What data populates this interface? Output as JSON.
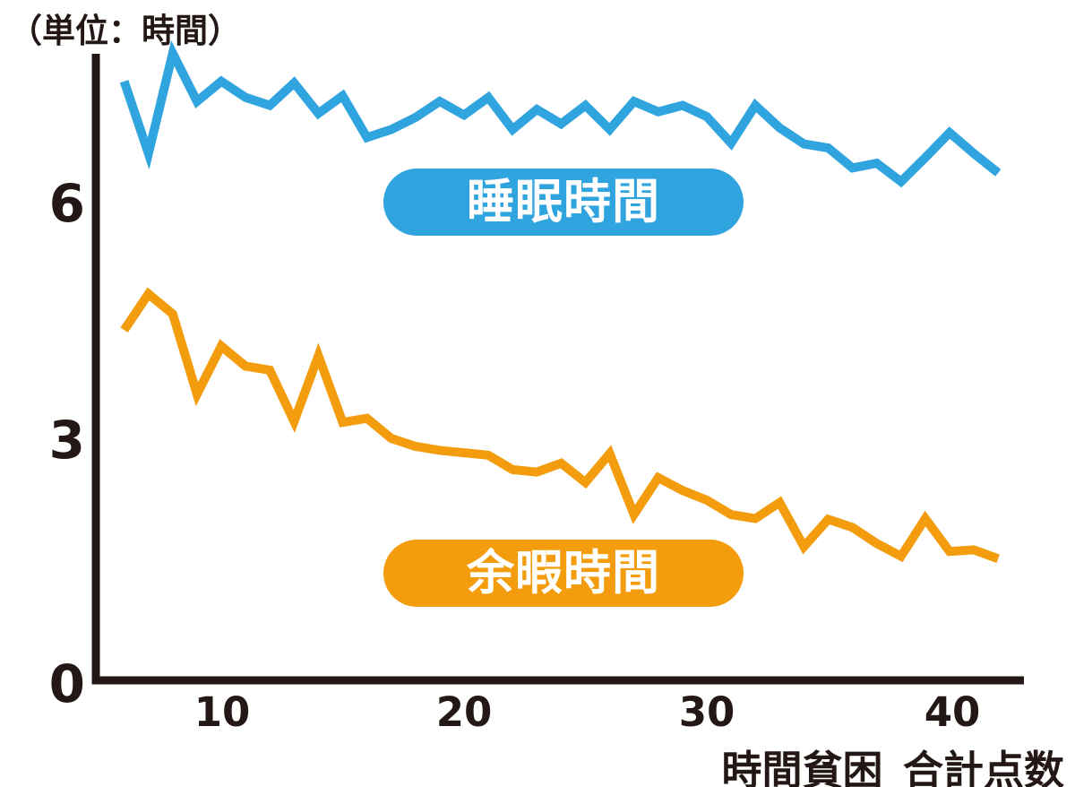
{
  "unit_label": "（単位：時間）",
  "y_axis": {
    "ticks": [
      "0",
      "3",
      "6"
    ]
  },
  "x_axis": {
    "ticks": [
      "10",
      "20",
      "30",
      "40"
    ],
    "title": "時間貧困_合計点数"
  },
  "legend": {
    "sleep_label": "睡眠時間",
    "leisure_label": "余暇時間"
  },
  "colors": {
    "sleep": "#30A4DF",
    "leisure": "#F29C0E",
    "axis": "#231815",
    "background": "#FFFFFF",
    "pill_text": "#FFFFFF"
  },
  "chart_data": {
    "type": "line",
    "title": "（単位：時間）",
    "xlabel": "時間貧困_合計点数",
    "ylabel": "時間",
    "xlim": [
      5,
      43
    ],
    "ylim": [
      0,
      8
    ],
    "x_ticks": [
      10,
      20,
      30,
      40
    ],
    "y_ticks": [
      0,
      3,
      6
    ],
    "grid": false,
    "legend_position": "inline-pills",
    "x": [
      6,
      7,
      8,
      9,
      10,
      11,
      12,
      13,
      14,
      15,
      16,
      17,
      18,
      19,
      20,
      21,
      22,
      23,
      24,
      25,
      26,
      27,
      28,
      29,
      30,
      31,
      32,
      33,
      34,
      35,
      36,
      37,
      38,
      39,
      40,
      41,
      42
    ],
    "series": [
      {
        "name": "睡眠時間",
        "color": "#30A4DF",
        "values": [
          7.5,
          6.6,
          7.85,
          7.25,
          7.5,
          7.3,
          7.2,
          7.48,
          7.1,
          7.32,
          6.8,
          6.9,
          7.05,
          7.25,
          7.08,
          7.3,
          6.9,
          7.15,
          6.97,
          7.2,
          6.9,
          7.25,
          7.12,
          7.2,
          7.06,
          6.73,
          7.2,
          6.92,
          6.72,
          6.67,
          6.42,
          6.48,
          6.25,
          6.55,
          6.86,
          6.6,
          6.36
        ]
      },
      {
        "name": "余暇時間",
        "color": "#F29C0E",
        "values": [
          4.4,
          4.85,
          4.6,
          3.6,
          4.2,
          3.95,
          3.9,
          3.26,
          4.08,
          3.25,
          3.3,
          3.05,
          2.95,
          2.9,
          2.87,
          2.84,
          2.66,
          2.63,
          2.74,
          2.5,
          2.86,
          2.1,
          2.56,
          2.4,
          2.28,
          2.1,
          2.05,
          2.25,
          1.7,
          2.04,
          1.94,
          1.74,
          1.58,
          2.05,
          1.64,
          1.66,
          1.55
        ]
      }
    ]
  }
}
